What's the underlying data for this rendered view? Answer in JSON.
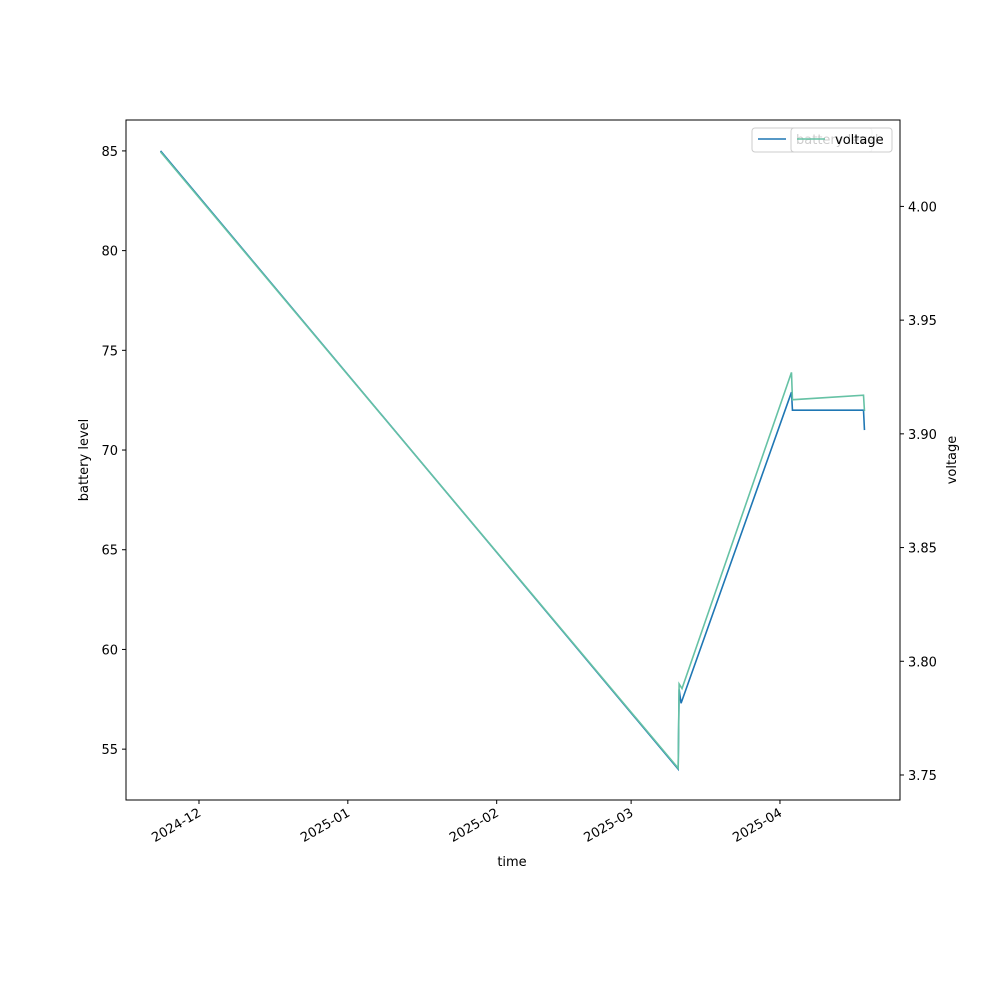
{
  "chart_data": {
    "type": "line",
    "x_label": "time",
    "y_label": "battery level",
    "y2_label": "voltage",
    "xlim": [
      20042.8,
      20204
    ],
    "ylim": [
      52.45,
      86.55
    ],
    "y2lim": [
      3.739,
      4.038
    ],
    "xticks": [
      {
        "value": 20058,
        "label": "2024-12"
      },
      {
        "value": 20089,
        "label": "2025-01"
      },
      {
        "value": 20120,
        "label": "2025-02"
      },
      {
        "value": 20148,
        "label": "2025-03"
      },
      {
        "value": 20179,
        "label": "2025-04"
      }
    ],
    "yticks": [
      55,
      60,
      65,
      70,
      75,
      80,
      85
    ],
    "y2ticks": [
      3.75,
      {
        "value": 3.8,
        "label": "3.80"
      },
      3.85,
      {
        "value": 3.9,
        "label": "3.90"
      },
      3.95,
      {
        "value": 4.0,
        "label": "4.00"
      }
    ],
    "grid": false,
    "legend": "upper right",
    "series": [
      {
        "name": "battery level",
        "color": "#1f77b4",
        "axis": "y",
        "x": [
          20050,
          20157.8,
          20158,
          20158.4,
          20181.4,
          20181.6,
          20196.4,
          20196.6
        ],
        "values": [
          85,
          54,
          58,
          57.3,
          72.9,
          72,
          72,
          71
        ]
      },
      {
        "name": "voltage",
        "color": "#66c2a5",
        "axis": "y2",
        "x": [
          20050,
          20157.8,
          20158,
          20158.6,
          20181.4,
          20181.6,
          20196.4,
          20196.6
        ],
        "values": [
          4.024,
          3.753,
          3.79,
          3.788,
          3.927,
          3.915,
          3.917,
          3.91
        ]
      }
    ]
  }
}
